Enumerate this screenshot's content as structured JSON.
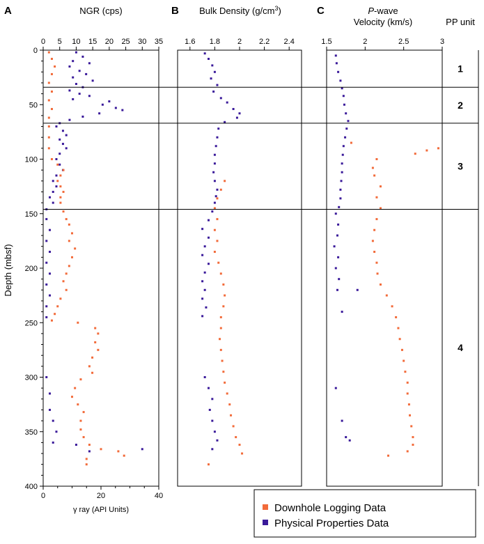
{
  "chart_data": [
    {
      "panel_label": "A",
      "type": "scatter",
      "title": "NGR (cps)",
      "top_axis": {
        "label": "NGR (cps)",
        "range": [
          0,
          35
        ],
        "ticks": [
          0,
          5,
          10,
          15,
          20,
          25,
          30,
          35
        ]
      },
      "bottom_axis": {
        "label": "γ ray (API Units)",
        "range": [
          0,
          40
        ],
        "ticks": [
          0,
          20,
          40
        ]
      },
      "ylabel": "Depth (mbsf)",
      "ylim": [
        400,
        0
      ],
      "yticks": [
        0,
        50,
        100,
        150,
        200,
        250,
        300,
        350,
        400
      ],
      "series": [
        {
          "name": "Physical Properties Data",
          "axis": "top",
          "points": [
            [
              10,
              2
            ],
            [
              12,
              6
            ],
            [
              9,
              10
            ],
            [
              14,
              12
            ],
            [
              8,
              15
            ],
            [
              11,
              19
            ],
            [
              13,
              22
            ],
            [
              9,
              25
            ],
            [
              15,
              28
            ],
            [
              10,
              31
            ],
            [
              12,
              34
            ],
            [
              8,
              37
            ],
            [
              11,
              40
            ],
            [
              14,
              42
            ],
            [
              9,
              45
            ],
            [
              20,
              47
            ],
            [
              18,
              50
            ],
            [
              22,
              53
            ],
            [
              24,
              55
            ],
            [
              17,
              58
            ],
            [
              12,
              61
            ],
            [
              8,
              64
            ],
            [
              5,
              67
            ],
            [
              4,
              70
            ],
            [
              6,
              74
            ],
            [
              7,
              78
            ],
            [
              5,
              82
            ],
            [
              6,
              86
            ],
            [
              7,
              90
            ],
            [
              5,
              95
            ],
            [
              4,
              100
            ],
            [
              5,
              105
            ],
            [
              6,
              110
            ],
            [
              4,
              115
            ],
            [
              3,
              120
            ],
            [
              4,
              125
            ],
            [
              3,
              130
            ],
            [
              2,
              135
            ],
            [
              3,
              140
            ],
            [
              1,
              146
            ],
            [
              1,
              155
            ],
            [
              2,
              165
            ],
            [
              1,
              175
            ],
            [
              2,
              185
            ],
            [
              1,
              195
            ],
            [
              2,
              205
            ],
            [
              1,
              215
            ],
            [
              2,
              225
            ],
            [
              1,
              235
            ],
            [
              1,
              245
            ],
            [
              1,
              300
            ],
            [
              2,
              315
            ],
            [
              2,
              330
            ],
            [
              3,
              340
            ],
            [
              4,
              350
            ],
            [
              3,
              360
            ],
            [
              10,
              362
            ],
            [
              14,
              368
            ],
            [
              30,
              366
            ]
          ]
        },
        {
          "name": "Downhole Logging Data",
          "axis": "bottom",
          "points": [
            [
              2,
              2
            ],
            [
              3,
              8
            ],
            [
              4,
              15
            ],
            [
              3,
              22
            ],
            [
              2,
              30
            ],
            [
              3,
              38
            ],
            [
              2,
              46
            ],
            [
              3,
              54
            ],
            [
              2,
              62
            ],
            [
              2,
              70
            ],
            [
              2,
              80
            ],
            [
              2,
              90
            ],
            [
              3,
              100
            ],
            [
              5,
              105
            ],
            [
              7,
              110
            ],
            [
              6,
              115
            ],
            [
              5,
              120
            ],
            [
              6,
              125
            ],
            [
              7,
              130
            ],
            [
              6,
              135
            ],
            [
              6,
              140
            ],
            [
              7,
              148
            ],
            [
              8,
              155
            ],
            [
              9,
              160
            ],
            [
              10,
              168
            ],
            [
              9,
              175
            ],
            [
              11,
              182
            ],
            [
              10,
              190
            ],
            [
              9,
              198
            ],
            [
              8,
              205
            ],
            [
              7,
              212
            ],
            [
              8,
              220
            ],
            [
              6,
              228
            ],
            [
              5,
              235
            ],
            [
              4,
              242
            ],
            [
              3,
              248
            ],
            [
              12,
              250
            ],
            [
              18,
              255
            ],
            [
              19,
              260
            ],
            [
              18,
              268
            ],
            [
              19,
              275
            ],
            [
              17,
              282
            ],
            [
              16,
              290
            ],
            [
              17,
              296
            ],
            [
              13,
              302
            ],
            [
              11,
              310
            ],
            [
              10,
              318
            ],
            [
              12,
              325
            ],
            [
              14,
              332
            ],
            [
              13,
              340
            ],
            [
              13,
              348
            ],
            [
              14,
              355
            ],
            [
              16,
              362
            ],
            [
              20,
              366
            ],
            [
              26,
              368
            ],
            [
              28,
              372
            ],
            [
              15,
              375
            ],
            [
              15,
              380
            ]
          ]
        }
      ]
    },
    {
      "panel_label": "B",
      "type": "scatter",
      "title": "Bulk Density (g/cm³)",
      "xlabel": "Bulk Density (g/cm³)",
      "xlim": [
        1.5,
        2.5
      ],
      "xticks": [
        1.6,
        1.8,
        2,
        2.2,
        2.4
      ],
      "ylim": [
        400,
        0
      ],
      "series": [
        {
          "name": "Physical Properties Data",
          "points": [
            [
              1.72,
              3
            ],
            [
              1.75,
              8
            ],
            [
              1.78,
              14
            ],
            [
              1.8,
              20
            ],
            [
              1.77,
              26
            ],
            [
              1.82,
              32
            ],
            [
              1.79,
              38
            ],
            [
              1.85,
              44
            ],
            [
              1.9,
              48
            ],
            [
              1.95,
              54
            ],
            [
              2.0,
              58
            ],
            [
              1.98,
              62
            ],
            [
              1.88,
              66
            ],
            [
              1.83,
              72
            ],
            [
              1.82,
              80
            ],
            [
              1.81,
              88
            ],
            [
              1.8,
              96
            ],
            [
              1.8,
              104
            ],
            [
              1.79,
              112
            ],
            [
              1.8,
              120
            ],
            [
              1.82,
              128
            ],
            [
              1.81,
              134
            ],
            [
              1.8,
              140
            ],
            [
              1.78,
              148
            ],
            [
              1.75,
              156
            ],
            [
              1.7,
              164
            ],
            [
              1.75,
              172
            ],
            [
              1.72,
              180
            ],
            [
              1.7,
              188
            ],
            [
              1.75,
              196
            ],
            [
              1.72,
              204
            ],
            [
              1.7,
              212
            ],
            [
              1.72,
              220
            ],
            [
              1.7,
              228
            ],
            [
              1.73,
              236
            ],
            [
              1.7,
              244
            ],
            [
              1.72,
              300
            ],
            [
              1.75,
              310
            ],
            [
              1.78,
              320
            ],
            [
              1.76,
              330
            ],
            [
              1.78,
              340
            ],
            [
              1.8,
              350
            ],
            [
              1.82,
              358
            ],
            [
              1.78,
              366
            ]
          ]
        },
        {
          "name": "Downhole Logging Data",
          "points": [
            [
              1.88,
              120
            ],
            [
              1.85,
              128
            ],
            [
              1.82,
              136
            ],
            [
              1.8,
              145
            ],
            [
              1.82,
              155
            ],
            [
              1.8,
              165
            ],
            [
              1.82,
              175
            ],
            [
              1.8,
              185
            ],
            [
              1.83,
              195
            ],
            [
              1.85,
              205
            ],
            [
              1.87,
              215
            ],
            [
              1.88,
              225
            ],
            [
              1.87,
              235
            ],
            [
              1.85,
              245
            ],
            [
              1.85,
              255
            ],
            [
              1.84,
              265
            ],
            [
              1.85,
              275
            ],
            [
              1.86,
              285
            ],
            [
              1.87,
              295
            ],
            [
              1.88,
              305
            ],
            [
              1.9,
              315
            ],
            [
              1.92,
              325
            ],
            [
              1.93,
              335
            ],
            [
              1.95,
              345
            ],
            [
              1.97,
              355
            ],
            [
              2.0,
              362
            ],
            [
              2.02,
              370
            ],
            [
              1.75,
              380
            ]
          ]
        }
      ]
    },
    {
      "panel_label": "C",
      "type": "scatter",
      "title": "P-wave Velocity (km/s)",
      "xlabel": "P-wave Velocity (km/s)",
      "xlim": [
        1.5,
        3
      ],
      "xticks": [
        1.5,
        2,
        2.5,
        3
      ],
      "ylim": [
        400,
        0
      ],
      "series": [
        {
          "name": "Physical Properties Data",
          "points": [
            [
              1.62,
              5
            ],
            [
              1.63,
              12
            ],
            [
              1.65,
              20
            ],
            [
              1.68,
              28
            ],
            [
              1.7,
              35
            ],
            [
              1.72,
              42
            ],
            [
              1.73,
              50
            ],
            [
              1.75,
              58
            ],
            [
              1.78,
              65
            ],
            [
              1.76,
              72
            ],
            [
              1.74,
              80
            ],
            [
              1.72,
              88
            ],
            [
              1.71,
              96
            ],
            [
              1.7,
              104
            ],
            [
              1.7,
              112
            ],
            [
              1.69,
              120
            ],
            [
              1.68,
              128
            ],
            [
              1.68,
              136
            ],
            [
              1.66,
              144
            ],
            [
              1.62,
              150
            ],
            [
              1.65,
              160
            ],
            [
              1.64,
              170
            ],
            [
              1.6,
              180
            ],
            [
              1.65,
              190
            ],
            [
              1.62,
              200
            ],
            [
              1.66,
              210
            ],
            [
              1.64,
              220
            ],
            [
              1.7,
              240
            ],
            [
              1.9,
              220
            ],
            [
              1.62,
              310
            ],
            [
              1.7,
              340
            ],
            [
              1.75,
              355
            ],
            [
              1.8,
              358
            ]
          ]
        },
        {
          "name": "Downhole Logging Data",
          "points": [
            [
              1.82,
              85
            ],
            [
              2.65,
              95
            ],
            [
              2.8,
              92
            ],
            [
              2.95,
              90
            ],
            [
              2.15,
              100
            ],
            [
              2.1,
              108
            ],
            [
              2.12,
              115
            ],
            [
              2.2,
              125
            ],
            [
              2.15,
              135
            ],
            [
              2.2,
              145
            ],
            [
              2.15,
              155
            ],
            [
              2.12,
              165
            ],
            [
              2.1,
              175
            ],
            [
              2.12,
              185
            ],
            [
              2.15,
              195
            ],
            [
              2.16,
              205
            ],
            [
              2.2,
              215
            ],
            [
              2.28,
              225
            ],
            [
              2.35,
              235
            ],
            [
              2.4,
              245
            ],
            [
              2.43,
              255
            ],
            [
              2.45,
              265
            ],
            [
              2.48,
              275
            ],
            [
              2.5,
              285
            ],
            [
              2.52,
              295
            ],
            [
              2.55,
              305
            ],
            [
              2.55,
              315
            ],
            [
              2.57,
              325
            ],
            [
              2.58,
              335
            ],
            [
              2.6,
              345
            ],
            [
              2.62,
              355
            ],
            [
              2.62,
              362
            ],
            [
              2.55,
              368
            ],
            [
              2.3,
              372
            ]
          ]
        }
      ]
    }
  ],
  "pp_units": {
    "header": "PP unit",
    "units": [
      {
        "label": "1",
        "top": 0,
        "bottom": 34
      },
      {
        "label": "2",
        "top": 34,
        "bottom": 67
      },
      {
        "label": "3",
        "top": 67,
        "bottom": 146
      },
      {
        "label": "4",
        "top": 146,
        "bottom": 400
      }
    ]
  },
  "legend": {
    "items": [
      {
        "label": "Downhole Logging Data",
        "color": "#f26b3a"
      },
      {
        "label": "Physical Properties Data",
        "color": "#3a1a9a"
      }
    ],
    "placement": "bottom-right"
  },
  "colors": {
    "logging": "#f26b3a",
    "physprop": "#3a1a9a"
  }
}
